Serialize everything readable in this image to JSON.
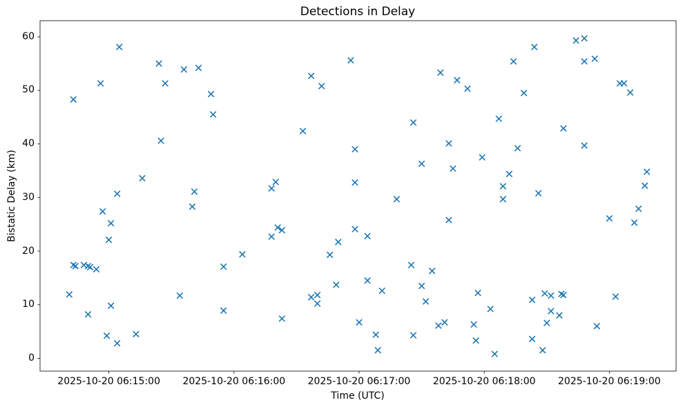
{
  "chart_data": {
    "type": "scatter",
    "title": "Detections in Delay",
    "xlabel": "Time (UTC)",
    "ylabel": "Bistatic Delay (km)",
    "marker": "x",
    "marker_color": "#1f77b4",
    "background_color": "#ffffff",
    "grid": false,
    "legend": null,
    "x_axis": {
      "tick_labels": [
        "2025-10-20 06:15:00",
        "2025-10-20 06:16:00",
        "2025-10-20 06:17:00",
        "2025-10-20 06:18:00",
        "2025-10-20 06:19:00"
      ],
      "tick_seconds": [
        0,
        60,
        120,
        180,
        240
      ],
      "range_seconds": [
        -33,
        272
      ]
    },
    "y_axis": {
      "ticks": [
        0,
        10,
        20,
        30,
        40,
        50,
        60
      ],
      "range": [
        -2.4,
        63
      ]
    },
    "points": [
      [
        "06:14:41",
        11.9
      ],
      [
        "06:14:43",
        48.3
      ],
      [
        "06:14:43",
        17.4
      ],
      [
        "06:14:44",
        17.2
      ],
      [
        "06:14:48",
        17.4
      ],
      [
        "06:14:50",
        17.2
      ],
      [
        "06:14:50",
        8.2
      ],
      [
        "06:14:51",
        17.0
      ],
      [
        "06:14:54",
        16.6
      ],
      [
        "06:14:56",
        51.3
      ],
      [
        "06:14:57",
        27.4
      ],
      [
        "06:14:59",
        4.2
      ],
      [
        "06:15:00",
        22.1
      ],
      [
        "06:15:01",
        25.2
      ],
      [
        "06:15:01",
        9.8
      ],
      [
        "06:15:04",
        30.7
      ],
      [
        "06:15:04",
        2.8
      ],
      [
        "06:15:05",
        58.1
      ],
      [
        "06:15:13",
        4.5
      ],
      [
        "06:15:16",
        33.6
      ],
      [
        "06:15:24",
        55.0
      ],
      [
        "06:15:25",
        40.6
      ],
      [
        "06:15:27",
        51.3
      ],
      [
        "06:15:34",
        11.7
      ],
      [
        "06:15:36",
        53.9
      ],
      [
        "06:15:40",
        28.3
      ],
      [
        "06:15:41",
        31.1
      ],
      [
        "06:15:43",
        54.2
      ],
      [
        "06:15:49",
        49.3
      ],
      [
        "06:15:50",
        45.5
      ],
      [
        "06:15:55",
        17.1
      ],
      [
        "06:15:55",
        8.9
      ],
      [
        "06:16:04",
        19.4
      ],
      [
        "06:16:18",
        31.7
      ],
      [
        "06:16:18",
        22.7
      ],
      [
        "06:16:20",
        32.9
      ],
      [
        "06:16:21",
        24.4
      ],
      [
        "06:16:23",
        23.9
      ],
      [
        "06:16:23",
        7.4
      ],
      [
        "06:16:33",
        42.4
      ],
      [
        "06:16:37",
        11.4
      ],
      [
        "06:16:37",
        52.7
      ],
      [
        "06:16:40",
        10.2
      ],
      [
        "06:16:40",
        11.8
      ],
      [
        "06:16:42",
        50.8
      ],
      [
        "06:16:46",
        19.3
      ],
      [
        "06:16:49",
        13.7
      ],
      [
        "06:16:50",
        21.7
      ],
      [
        "06:16:56",
        55.6
      ],
      [
        "06:16:58",
        24.1
      ],
      [
        "06:16:58",
        39.0
      ],
      [
        "06:16:58",
        32.8
      ],
      [
        "06:17:00",
        6.7
      ],
      [
        "06:17:04",
        22.8
      ],
      [
        "06:17:04",
        14.5
      ],
      [
        "06:17:08",
        4.4
      ],
      [
        "06:17:09",
        1.5
      ],
      [
        "06:17:11",
        12.6
      ],
      [
        "06:17:18",
        29.7
      ],
      [
        "06:17:25",
        17.4
      ],
      [
        "06:17:26",
        44.0
      ],
      [
        "06:17:26",
        4.3
      ],
      [
        "06:17:30",
        13.5
      ],
      [
        "06:17:30",
        36.3
      ],
      [
        "06:17:32",
        10.6
      ],
      [
        "06:17:35",
        16.3
      ],
      [
        "06:17:38",
        6.1
      ],
      [
        "06:17:39",
        53.3
      ],
      [
        "06:17:41",
        6.7
      ],
      [
        "06:17:43",
        25.8
      ],
      [
        "06:17:43",
        40.1
      ],
      [
        "06:17:45",
        35.4
      ],
      [
        "06:17:47",
        51.9
      ],
      [
        "06:17:52",
        50.3
      ],
      [
        "06:17:55",
        6.3
      ],
      [
        "06:17:56",
        3.3
      ],
      [
        "06:17:57",
        12.2
      ],
      [
        "06:17:59",
        37.5
      ],
      [
        "06:18:03",
        9.2
      ],
      [
        "06:18:05",
        0.8
      ],
      [
        "06:18:07",
        44.7
      ],
      [
        "06:18:09",
        32.1
      ],
      [
        "06:18:09",
        29.7
      ],
      [
        "06:18:12",
        34.4
      ],
      [
        "06:18:14",
        55.4
      ],
      [
        "06:18:16",
        39.2
      ],
      [
        "06:18:19",
        49.5
      ],
      [
        "06:18:23",
        10.9
      ],
      [
        "06:18:23",
        3.6
      ],
      [
        "06:18:24",
        58.1
      ],
      [
        "06:18:26",
        30.8
      ],
      [
        "06:18:28",
        1.5
      ],
      [
        "06:18:29",
        12.1
      ],
      [
        "06:18:30",
        6.6
      ],
      [
        "06:18:32",
        8.8
      ],
      [
        "06:18:32",
        11.7
      ],
      [
        "06:18:36",
        8.0
      ],
      [
        "06:18:37",
        12.0
      ],
      [
        "06:18:38",
        11.8
      ],
      [
        "06:18:38",
        42.9
      ],
      [
        "06:18:44",
        59.3
      ],
      [
        "06:18:48",
        59.7
      ],
      [
        "06:18:48",
        55.4
      ],
      [
        "06:18:48",
        39.7
      ],
      [
        "06:18:53",
        55.9
      ],
      [
        "06:18:54",
        6.0
      ],
      [
        "06:19:00",
        26.1
      ],
      [
        "06:19:03",
        11.5
      ],
      [
        "06:19:05",
        51.3
      ],
      [
        "06:19:07",
        51.3
      ],
      [
        "06:19:10",
        49.6
      ],
      [
        "06:19:12",
        25.3
      ],
      [
        "06:19:14",
        27.9
      ],
      [
        "06:19:17",
        32.2
      ],
      [
        "06:19:18",
        34.8
      ]
    ]
  }
}
